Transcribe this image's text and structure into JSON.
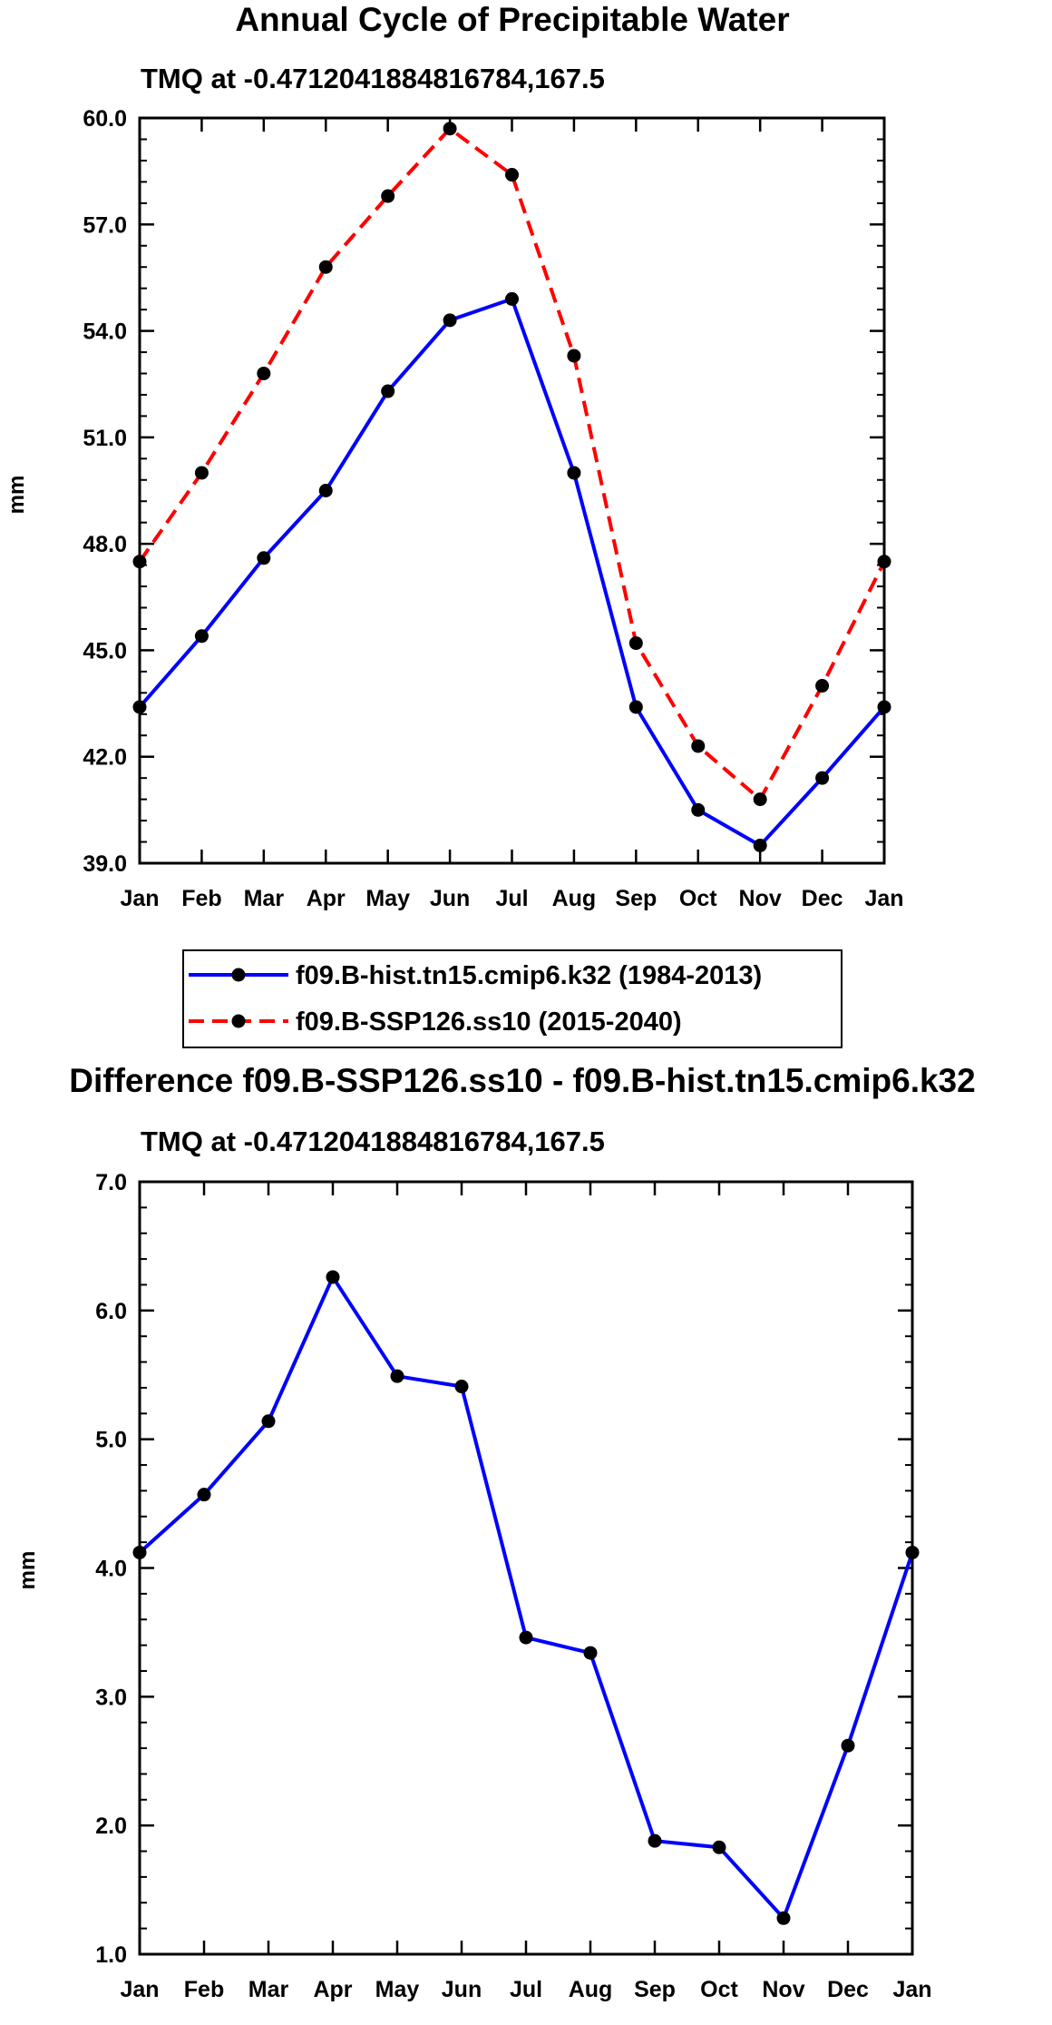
{
  "chart_data": [
    {
      "type": "line",
      "title": "Annual Cycle of Precipitable Water",
      "subtitle": "TMQ at -0.4712041884816784,167.5",
      "xlabel": "",
      "ylabel": "mm",
      "categories": [
        "Jan",
        "Feb",
        "Mar",
        "Apr",
        "May",
        "Jun",
        "Jul",
        "Aug",
        "Sep",
        "Oct",
        "Nov",
        "Dec",
        "Jan"
      ],
      "ylim": [
        39.0,
        60.0
      ],
      "yticks": [
        "39.0",
        "42.0",
        "45.0",
        "48.0",
        "51.0",
        "54.0",
        "57.0",
        "60.0"
      ],
      "grid": false,
      "legend_position": "bottom",
      "series": [
        {
          "name": "f09.B-hist.tn15.cmip6.k32 (1984-2013)",
          "color": "#0000ff",
          "dash": "solid",
          "values": [
            43.4,
            45.4,
            47.6,
            49.5,
            52.3,
            54.3,
            54.9,
            50.0,
            43.4,
            40.5,
            39.5,
            41.4,
            43.4
          ]
        },
        {
          "name": "f09.B-SSP126.ss10 (2015-2040)",
          "color": "#ff0000",
          "dash": "dashed",
          "values": [
            47.5,
            50.0,
            52.8,
            55.8,
            57.8,
            59.7,
            58.4,
            53.3,
            45.2,
            42.3,
            40.8,
            44.0,
            47.5
          ]
        }
      ]
    },
    {
      "type": "line",
      "title": "Difference f09.B-SSP126.ss10 - f09.B-hist.tn15.cmip6.k32",
      "subtitle": "TMQ at -0.4712041884816784,167.5",
      "xlabel": "",
      "ylabel": "mm",
      "categories": [
        "Jan",
        "Feb",
        "Mar",
        "Apr",
        "May",
        "Jun",
        "Jul",
        "Aug",
        "Sep",
        "Oct",
        "Nov",
        "Dec",
        "Jan"
      ],
      "ylim": [
        1.0,
        7.0
      ],
      "yticks": [
        "1.0",
        "2.0",
        "3.0",
        "4.0",
        "5.0",
        "6.0",
        "7.0"
      ],
      "grid": false,
      "series": [
        {
          "name": "Difference",
          "color": "#0000ff",
          "dash": "solid",
          "values": [
            4.12,
            4.57,
            5.14,
            6.26,
            5.49,
            5.41,
            3.46,
            3.34,
            1.88,
            1.83,
            1.28,
            2.62,
            4.12
          ]
        }
      ]
    }
  ]
}
